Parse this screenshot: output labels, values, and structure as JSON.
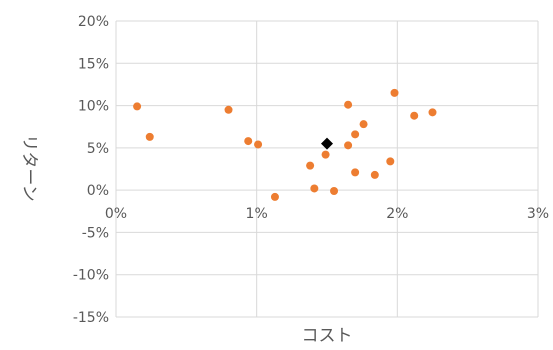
{
  "chart_data": {
    "type": "scatter",
    "title": "",
    "xlabel": "コスト",
    "ylabel": "リターン",
    "xlim": [
      0,
      0.03
    ],
    "ylim": [
      -0.15,
      0.2
    ],
    "x_ticks": [
      "0%",
      "1%",
      "2%",
      "3%"
    ],
    "x_tick_values": [
      0,
      0.01,
      0.02,
      0.03
    ],
    "y_ticks": [
      "20%",
      "15%",
      "10%",
      "5%",
      "0%",
      "-5%",
      "-10%",
      "-15%"
    ],
    "y_tick_values": [
      0.2,
      0.15,
      0.1,
      0.05,
      0,
      -0.05,
      -0.1,
      -0.15
    ],
    "grid": true,
    "legend": "none",
    "colors": {
      "series": "#ED7D31",
      "highlight": "#000000",
      "grid": "#D9D9D9",
      "text": "#595959"
    },
    "series": [
      {
        "marker": "circle",
        "points": [
          [
            0.0015,
            0.099
          ],
          [
            0.0024,
            0.063
          ],
          [
            0.008,
            0.095
          ],
          [
            0.0094,
            0.058
          ],
          [
            0.0101,
            0.054
          ],
          [
            0.0113,
            -0.008
          ],
          [
            0.0138,
            0.029
          ],
          [
            0.0141,
            0.002
          ],
          [
            0.0149,
            0.042
          ],
          [
            0.0155,
            -0.001
          ],
          [
            0.0165,
            0.101
          ],
          [
            0.0165,
            0.053
          ],
          [
            0.017,
            0.066
          ],
          [
            0.017,
            0.021
          ],
          [
            0.0176,
            0.078
          ],
          [
            0.0184,
            0.018
          ],
          [
            0.0195,
            0.034
          ],
          [
            0.0198,
            0.115
          ],
          [
            0.0212,
            0.088
          ],
          [
            0.0225,
            0.092
          ]
        ]
      },
      {
        "marker": "diamond",
        "points": [
          [
            0.015,
            0.055
          ]
        ]
      }
    ]
  }
}
